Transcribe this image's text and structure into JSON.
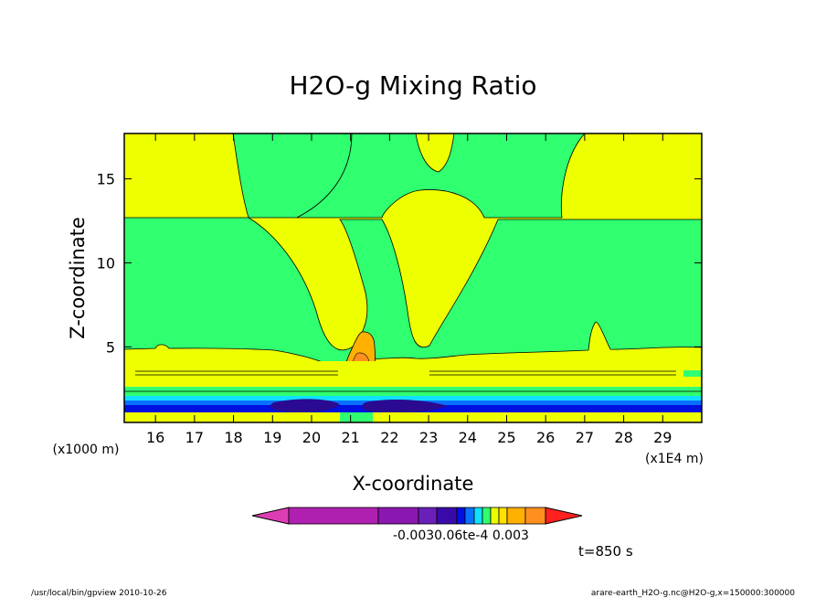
{
  "chart_data": {
    "type": "heatmap",
    "title": "H2O-g Mixing Ratio",
    "xlabel": "X-coordinate",
    "ylabel": "Z-coordinate",
    "x_unit_label": "(x1E4 m)",
    "y_unit_label": "(x1000 m)",
    "xlim": [
      15.2,
      30.0
    ],
    "ylim": [
      0.5,
      17.7
    ],
    "x_ticks": [
      16,
      17,
      18,
      19,
      20,
      21,
      22,
      23,
      24,
      25,
      26,
      27,
      28,
      29
    ],
    "y_ticks": [
      5,
      10,
      15
    ],
    "grid": false,
    "colorbar": {
      "label_text": "-0.0030.06te-4  0.003",
      "colors": [
        "#dd3db3",
        "#b020b0",
        "#8a18b0",
        "#6a20b8",
        "#3a0aa8",
        "#0010e0",
        "#0a70ff",
        "#10e0ff",
        "#30ff70",
        "#eeff00",
        "#ffe000",
        "#ffb000",
        "#ff9020",
        "#ff2020"
      ]
    },
    "regions": [
      {
        "level": "green",
        "polygons": [
          [
            [
              15.2,
              12.5
            ],
            [
              30,
              12.5
            ],
            [
              30,
              4.8
            ],
            [
              15.2,
              4.8
            ]
          ]
        ]
      },
      {
        "level": "green",
        "polygons": [
          [
            [
              18.0,
              17.7
            ],
            [
              23.0,
              17.7
            ],
            [
              22.4,
              13.0
            ],
            [
              21.5,
              12.4
            ],
            [
              20.5,
              13.2
            ],
            [
              18.2,
              12.9
            ]
          ]
        ]
      },
      {
        "level": "green",
        "polygons": [
          [
            [
              22.0,
              17.7
            ],
            [
              27.4,
              17.7
            ],
            [
              27.2,
              12.9
            ],
            [
              25.0,
              12.9
            ],
            [
              23.6,
              14.0
            ],
            [
              22.6,
              13.0
            ]
          ]
        ]
      }
    ],
    "annotations": [
      "t=850 s"
    ]
  },
  "footer": {
    "left": "/usr/local/bin/gpview  2010-10-26",
    "right": "arare-earth_H2O-g.nc@H2O-g,x=150000:300000"
  }
}
